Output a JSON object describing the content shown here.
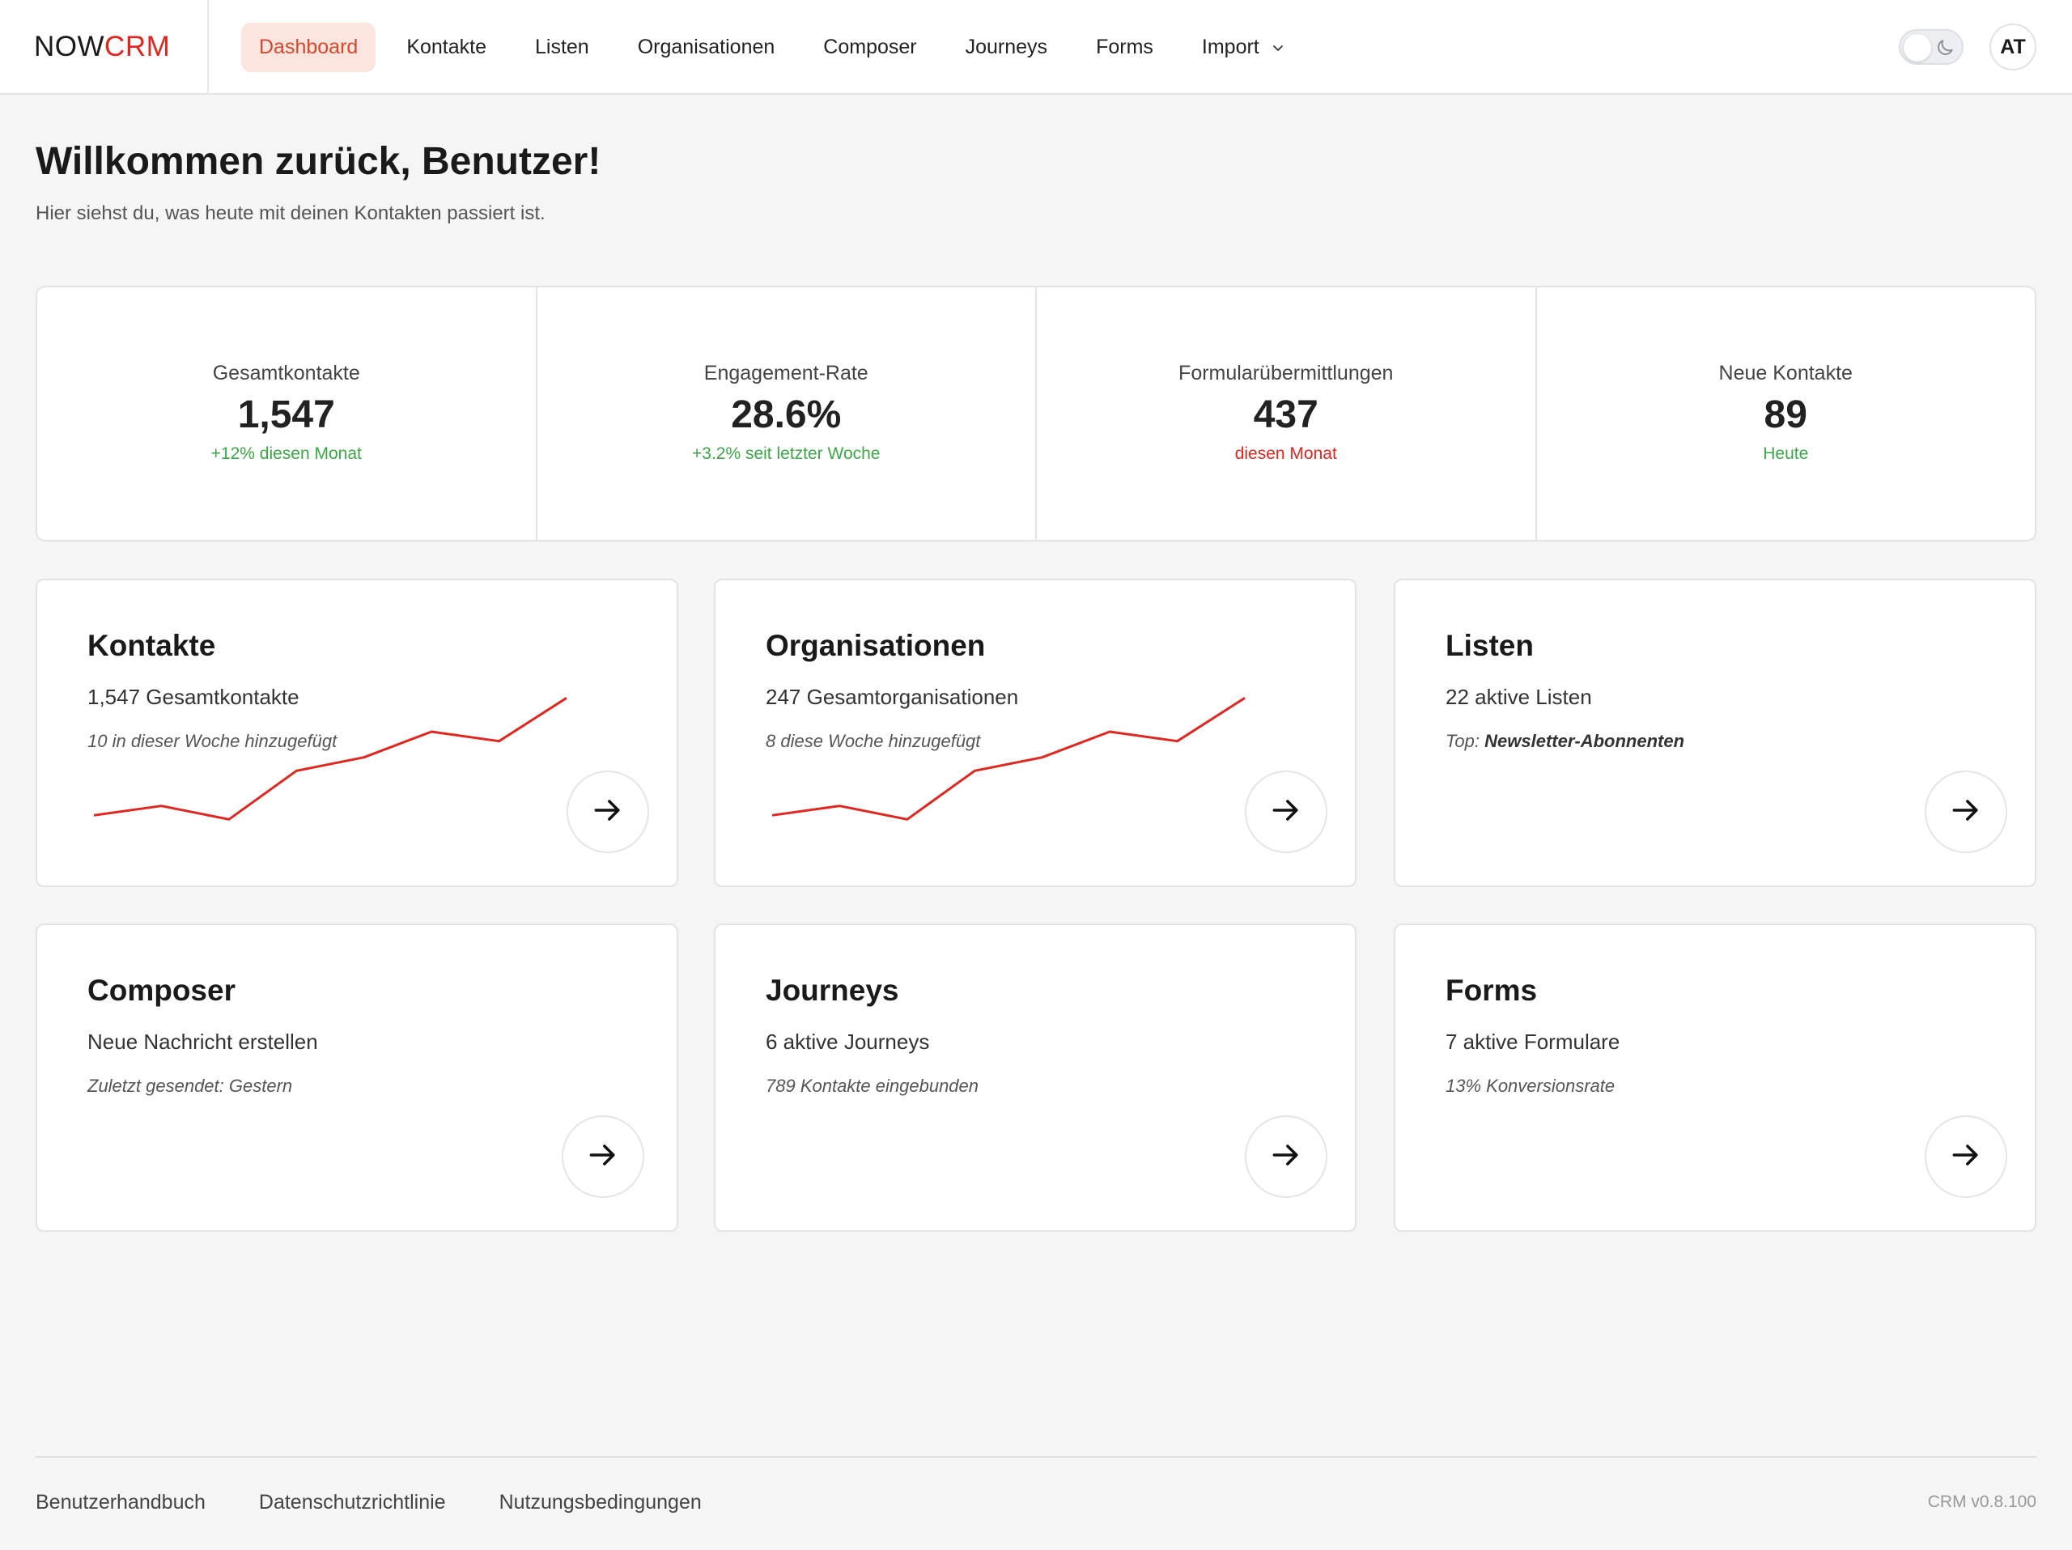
{
  "header": {
    "logo_now": "NOW",
    "logo_crm": "CRM",
    "nav": [
      {
        "label": "Dashboard",
        "active": true
      },
      {
        "label": "Kontakte"
      },
      {
        "label": "Listen"
      },
      {
        "label": "Organisationen"
      },
      {
        "label": "Composer"
      },
      {
        "label": "Journeys"
      },
      {
        "label": "Forms"
      },
      {
        "label": "Import"
      }
    ],
    "avatar_initials": "AT",
    "theme_icon": "moon-icon"
  },
  "welcome": {
    "title": "Willkommen zurück, Benutzer!",
    "subtitle": "Hier siehst du, was heute mit deinen Kontakten passiert ist."
  },
  "stats": [
    {
      "label": "Gesamtkontakte",
      "value": "1,547",
      "sub": "+12% diesen Monat",
      "sub_color": "green"
    },
    {
      "label": "Engagement-Rate",
      "value": "28.6%",
      "sub": "+3.2% seit letzter Woche",
      "sub_color": "green"
    },
    {
      "label": "Formularübermittlungen",
      "value": "437",
      "sub": "diesen Monat",
      "sub_color": "red"
    },
    {
      "label": "Neue Kontakte",
      "value": "89",
      "sub": "Heute",
      "sub_color": "green"
    }
  ],
  "cards": {
    "kontakte": {
      "title": "Kontakte",
      "main": "1,547 Gesamtkontakte",
      "note": "10 in dieser Woche hinzugefügt"
    },
    "organisationen": {
      "title": "Organisationen",
      "main": "247 Gesamtorganisationen",
      "note": "8 diese Woche hinzugefügt"
    },
    "listen": {
      "title": "Listen",
      "main": "22 aktive Listen",
      "note_prefix": "Top: ",
      "note_strong": "Newsletter-Abonnenten"
    },
    "composer": {
      "title": "Composer",
      "main": "Neue Nachricht erstellen",
      "note": "Zuletzt gesendet: Gestern"
    },
    "journeys": {
      "title": "Journeys",
      "main": "6 aktive Journeys",
      "note": "789 Kontakte eingebunden"
    },
    "forms": {
      "title": "Forms",
      "main": "7 aktive Formulare",
      "note": "13% Konversionsrate"
    }
  },
  "sparkline": {
    "color": "#e0261f",
    "values": [
      2.5,
      3.2,
      2.2,
      5.8,
      6.8,
      8.7,
      8.0,
      11.2
    ]
  },
  "colors": {
    "accent": "#e0261f",
    "positive": "#3aa845",
    "nav_active_bg": "#fbe5de",
    "nav_active_text": "#d9462b"
  },
  "footer": {
    "links": [
      "Benutzerhandbuch",
      "Datenschutzrichtlinie",
      "Nutzungsbedingungen"
    ],
    "version": "CRM v0.8.100"
  }
}
